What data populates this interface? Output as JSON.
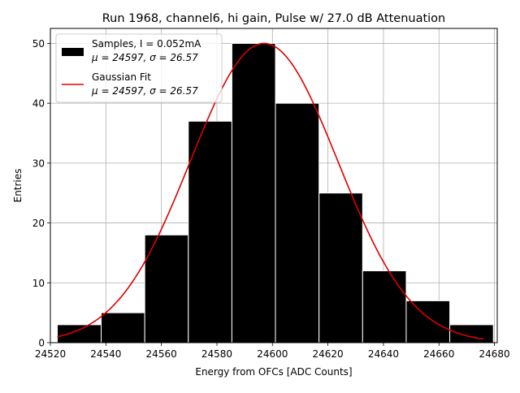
{
  "chart_data": {
    "type": "bar",
    "title": "Run 1968, channel6, hi gain, Pulse w/ 27.0 dB Attenuation",
    "xlabel": "Energy from OFCs [ADC Counts]",
    "ylabel": "Entries",
    "xlim": [
      24520,
      24681
    ],
    "ylim": [
      0,
      52.5
    ],
    "xticks": [
      24520,
      24540,
      24560,
      24580,
      24600,
      24620,
      24640,
      24660,
      24680
    ],
    "yticks": [
      0,
      10,
      20,
      30,
      40,
      50
    ],
    "grid": true,
    "legend_position": "top-left",
    "histogram": {
      "name": "Samples, I = 0.052mA",
      "stats": "μ = 24597, σ = 26.57",
      "bin_edges": [
        24522.5,
        24538.3,
        24554.0,
        24569.7,
        24585.4,
        24601.1,
        24616.8,
        24632.5,
        24648.2,
        24663.9,
        24679.6
      ],
      "counts": [
        3,
        5,
        18,
        37,
        50,
        40,
        25,
        12,
        7,
        3
      ],
      "color": "#000000",
      "edge_color": "#ffffff"
    },
    "fit": {
      "name": "Gaussian Fit",
      "stats": "μ = 24597, σ = 26.57",
      "mu": 24597,
      "sigma": 26.57,
      "amplitude": 50,
      "x_range": [
        24522.5,
        24676.0
      ],
      "color": "#dd0000"
    }
  }
}
